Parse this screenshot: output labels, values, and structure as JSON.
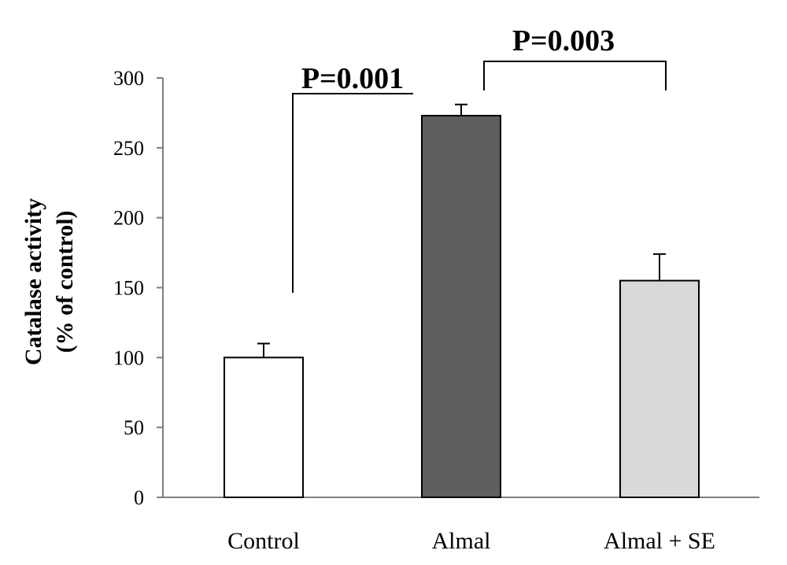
{
  "chart_data": {
    "type": "bar",
    "categories": [
      "Control",
      "Almal",
      "Almal + SE"
    ],
    "values": [
      100,
      273,
      155
    ],
    "errors": [
      10,
      8,
      19
    ],
    "colors": [
      "#ffffff",
      "#5f5f5f",
      "#d9d9d9"
    ],
    "title": "",
    "xlabel": "",
    "ylabel_lines": [
      "Catalase activity",
      "(% of control)"
    ],
    "ylim": [
      0,
      300
    ],
    "yticks": [
      0,
      50,
      100,
      150,
      200,
      250,
      300
    ],
    "grid": false,
    "legend": "none",
    "annotations": [
      {
        "text": "P=0.001",
        "from": "Control",
        "to": "Almal"
      },
      {
        "text": "P=0.003",
        "from": "Almal",
        "to": "Almal + SE"
      }
    ]
  }
}
